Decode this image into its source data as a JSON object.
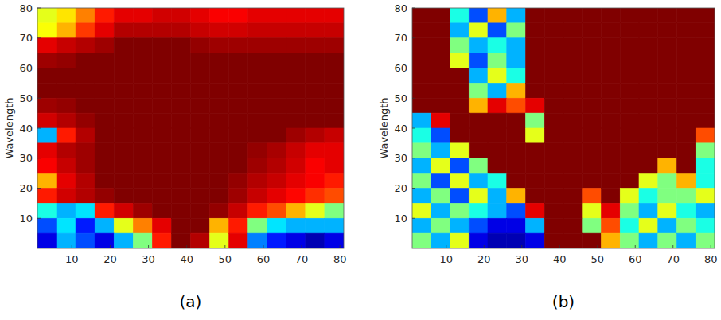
{
  "chart_data": [
    {
      "type": "heatmap",
      "caption": "(a)",
      "y_label": "Wavelength",
      "x": [
        3.5,
        8.5,
        13.5,
        18.5,
        23.5,
        28.5,
        33.5,
        38.5,
        43.5,
        48.5,
        53.5,
        58.5,
        63.5,
        68.5,
        73.5,
        78.5
      ],
      "y": [
        77.5,
        72.5,
        67.5,
        62.5,
        57.5,
        52.5,
        47.5,
        42.5,
        37.5,
        32.5,
        27.5,
        22.5,
        17.5,
        12.5,
        7.5,
        2.5
      ],
      "xlim": [
        1,
        81
      ],
      "ylim": [
        0,
        80
      ],
      "xticks": [
        10,
        20,
        30,
        40,
        50,
        60,
        70,
        80
      ],
      "yticks": [
        10,
        20,
        30,
        40,
        50,
        60,
        70,
        80
      ],
      "zlim": [
        0,
        1
      ],
      "cells": [
        [
          0.6,
          0.65,
          0.75,
          0.85,
          0.9,
          0.9,
          0.92,
          0.92,
          0.9,
          0.88,
          0.88,
          0.9,
          0.9,
          0.9,
          0.9,
          0.9
        ],
        [
          0.62,
          0.7,
          0.82,
          0.9,
          0.95,
          0.95,
          0.95,
          0.95,
          0.93,
          0.92,
          0.92,
          0.93,
          0.93,
          0.93,
          0.93,
          0.93
        ],
        [
          0.9,
          0.93,
          0.95,
          0.97,
          1,
          1,
          1,
          1,
          0.98,
          0.97,
          0.97,
          0.97,
          0.97,
          0.97,
          0.97,
          0.97
        ],
        [
          0.97,
          0.98,
          1,
          1,
          1,
          1,
          1,
          1,
          1,
          1,
          1,
          1,
          1,
          1,
          1,
          1
        ],
        [
          1,
          1,
          1,
          1,
          1,
          1,
          1,
          1,
          1,
          1,
          1,
          1,
          1,
          1,
          1,
          1
        ],
        [
          1,
          1,
          1,
          1,
          1,
          1,
          1,
          1,
          1,
          1,
          1,
          1,
          1,
          1,
          1,
          1
        ],
        [
          0.97,
          0.98,
          1,
          1,
          1,
          1,
          1,
          1,
          1,
          1,
          1,
          1,
          1,
          1,
          1,
          1
        ],
        [
          0.92,
          0.95,
          0.98,
          1,
          1,
          1,
          1,
          1,
          1,
          1,
          1,
          1,
          1,
          1,
          1,
          1
        ],
        [
          0.3,
          0.85,
          0.95,
          1,
          1,
          1,
          1,
          1,
          1,
          1,
          1,
          1,
          1,
          0.97,
          0.95,
          0.93
        ],
        [
          0.9,
          0.95,
          0.97,
          1,
          1,
          1,
          1,
          1,
          1,
          1,
          1,
          0.98,
          0.96,
          0.93,
          0.9,
          0.9
        ],
        [
          0.88,
          0.93,
          0.97,
          1,
          1,
          1,
          1,
          1,
          1,
          1,
          1,
          0.97,
          0.95,
          0.92,
          0.88,
          0.9
        ],
        [
          0.7,
          0.9,
          0.95,
          1,
          1,
          1,
          1,
          1,
          1,
          1,
          0.98,
          0.95,
          0.93,
          0.9,
          0.88,
          0.85
        ],
        [
          0.85,
          0.92,
          0.95,
          0.98,
          1,
          1,
          1,
          1,
          1,
          1,
          0.97,
          0.93,
          0.9,
          0.87,
          0.83,
          0.8
        ],
        [
          0.4,
          0.3,
          0.35,
          0.85,
          0.92,
          0.97,
          1,
          1,
          1,
          0.98,
          0.93,
          0.85,
          0.8,
          0.7,
          0.6,
          0.5
        ],
        [
          0.2,
          0.35,
          0.15,
          0.3,
          0.6,
          0.75,
          0.9,
          1,
          1,
          0.7,
          0.85,
          0.5,
          0.35,
          0.3,
          0.3,
          0.3
        ],
        [
          0.1,
          0.3,
          0.2,
          0.1,
          0.3,
          0.5,
          0.85,
          1,
          0.95,
          0.6,
          0.9,
          0.25,
          0.15,
          0.1,
          0.05,
          0.1
        ]
      ]
    },
    {
      "type": "heatmap",
      "caption": "(b)",
      "y_label": "Wavelength",
      "x": [
        3.5,
        8.5,
        13.5,
        18.5,
        23.5,
        28.5,
        33.5,
        38.5,
        43.5,
        48.5,
        53.5,
        58.5,
        63.5,
        68.5,
        73.5,
        78.5
      ],
      "y": [
        77.5,
        72.5,
        67.5,
        62.5,
        57.5,
        52.5,
        47.5,
        42.5,
        37.5,
        32.5,
        27.5,
        22.5,
        17.5,
        12.5,
        7.5,
        2.5
      ],
      "xlim": [
        1,
        81
      ],
      "ylim": [
        0,
        80
      ],
      "xticks": [
        10,
        20,
        30,
        40,
        50,
        60,
        70,
        80
      ],
      "yticks": [
        10,
        20,
        30,
        40,
        50,
        60,
        70,
        80
      ],
      "zlim": [
        0,
        1
      ],
      "cells": [
        [
          1,
          1,
          0.4,
          0.2,
          0.7,
          0.3,
          1,
          1,
          1,
          1,
          1,
          1,
          1,
          1,
          1,
          1
        ],
        [
          1,
          1,
          0.3,
          0.6,
          0.2,
          0.5,
          1,
          1,
          1,
          1,
          1,
          1,
          1,
          1,
          1,
          1
        ],
        [
          1,
          1,
          0.5,
          0.3,
          0.4,
          0.3,
          1,
          1,
          1,
          1,
          1,
          1,
          1,
          1,
          1,
          1
        ],
        [
          1,
          1,
          0.6,
          0.2,
          0.5,
          0.3,
          1,
          1,
          1,
          1,
          1,
          1,
          1,
          1,
          1,
          1
        ],
        [
          1,
          1,
          1,
          0.3,
          0.6,
          0.4,
          1,
          1,
          1,
          1,
          1,
          1,
          1,
          1,
          1,
          1
        ],
        [
          1,
          1,
          1,
          0.5,
          0.3,
          0.7,
          1,
          1,
          1,
          1,
          1,
          1,
          1,
          1,
          1,
          1
        ],
        [
          1,
          1,
          1,
          0.7,
          0.9,
          0.8,
          0.9,
          1,
          1,
          1,
          1,
          1,
          1,
          1,
          1,
          1
        ],
        [
          0.3,
          0.9,
          1,
          1,
          1,
          1,
          0.5,
          1,
          1,
          1,
          1,
          1,
          1,
          1,
          1,
          1
        ],
        [
          0.4,
          0.2,
          1,
          1,
          1,
          1,
          0.6,
          1,
          1,
          1,
          1,
          1,
          1,
          1,
          1,
          0.8
        ],
        [
          0.5,
          0.3,
          0.6,
          1,
          1,
          1,
          1,
          1,
          1,
          1,
          1,
          1,
          1,
          1,
          1,
          0.5
        ],
        [
          0.3,
          0.6,
          0.2,
          0.5,
          1,
          1,
          1,
          1,
          1,
          1,
          1,
          1,
          1,
          0.7,
          1,
          0.4
        ],
        [
          0.5,
          0.2,
          0.6,
          0.3,
          0.4,
          1,
          1,
          1,
          1,
          1,
          1,
          1,
          0.6,
          0.5,
          0.7,
          0.4
        ],
        [
          0.3,
          0.5,
          0.2,
          0.6,
          0.3,
          0.7,
          1,
          1,
          1,
          0.8,
          1,
          0.6,
          0.4,
          0.5,
          0.5,
          0.6
        ],
        [
          0.6,
          0.3,
          0.5,
          0.4,
          0.3,
          0.2,
          0.9,
          1,
          1,
          0.6,
          0.9,
          0.5,
          0.3,
          0.6,
          0.4,
          0.3
        ],
        [
          0.3,
          0.5,
          0.3,
          0.2,
          0.1,
          0.1,
          0.3,
          1,
          1,
          0.5,
          0.8,
          0.4,
          0.6,
          0.3,
          0.5,
          0.4
        ],
        [
          0.5,
          0.3,
          0.6,
          0.1,
          0.05,
          0.05,
          0.1,
          1,
          1,
          1,
          0.7,
          0.5,
          0.3,
          0.5,
          0.3,
          0.5
        ]
      ]
    }
  ]
}
